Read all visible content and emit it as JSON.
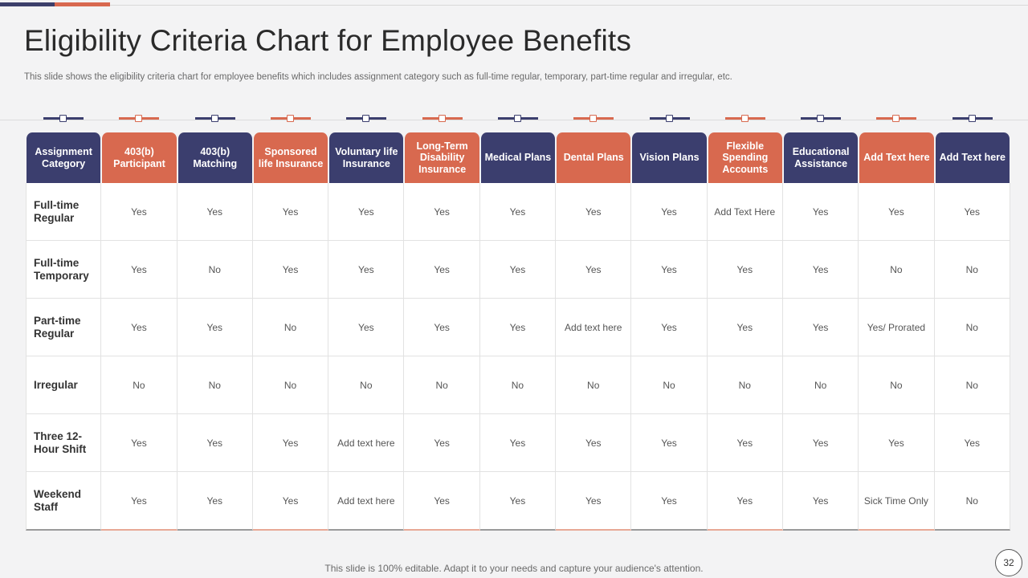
{
  "slide": {
    "title": "Eligibility Criteria Chart for Employee Benefits",
    "subtitle": "This slide shows the eligibility criteria chart for  employee benefits which includes assignment category such as full-time regular, temporary, part-time regular and irregular, etc.",
    "footer": "This slide is 100% editable. Adapt it to your needs and capture your audience's attention.",
    "page_number": "32"
  },
  "colors": {
    "navy": "#3b3e6e",
    "orange": "#d8694f"
  },
  "table": {
    "headers": [
      {
        "label": "Assignment Category",
        "color": "navy"
      },
      {
        "label": "403(b) Participant",
        "color": "orange"
      },
      {
        "label": "403(b) Matching",
        "color": "navy"
      },
      {
        "label": "Sponsored life Insurance",
        "color": "orange"
      },
      {
        "label": "Voluntary life Insurance",
        "color": "navy"
      },
      {
        "label": "Long-Term Disability Insurance",
        "color": "orange"
      },
      {
        "label": "Medical Plans",
        "color": "navy"
      },
      {
        "label": "Dental Plans",
        "color": "orange"
      },
      {
        "label": "Vision Plans",
        "color": "navy"
      },
      {
        "label": "Flexible Spending Accounts",
        "color": "orange"
      },
      {
        "label": "Educational Assistance",
        "color": "navy"
      },
      {
        "label": "Add Text here",
        "color": "orange"
      },
      {
        "label": "Add Text here",
        "color": "navy"
      }
    ],
    "rows": [
      [
        "Full-time Regular",
        "Yes",
        "Yes",
        "Yes",
        "Yes",
        "Yes",
        "Yes",
        "Yes",
        "Yes",
        "Add Text Here",
        "Yes",
        "Yes",
        "Yes"
      ],
      [
        "Full-time Temporary",
        "Yes",
        "No",
        "Yes",
        "Yes",
        "Yes",
        "Yes",
        "Yes",
        "Yes",
        "Yes",
        "Yes",
        "No",
        "No"
      ],
      [
        "Part-time Regular",
        "Yes",
        "Yes",
        "No",
        "Yes",
        "Yes",
        "Yes",
        "Add text here",
        "Yes",
        "Yes",
        "Yes",
        "Yes/ Prorated",
        "No"
      ],
      [
        "Irregular",
        "No",
        "No",
        "No",
        "No",
        "No",
        "No",
        "No",
        "No",
        "No",
        "No",
        "No",
        "No"
      ],
      [
        "Three 12-Hour  Shift",
        "Yes",
        "Yes",
        "Yes",
        "Add text here",
        "Yes",
        "Yes",
        "Yes",
        "Yes",
        "Yes",
        "Yes",
        "Yes",
        "Yes"
      ],
      [
        "Weekend Staff",
        "Yes",
        "Yes",
        "Yes",
        "Add text here",
        "Yes",
        "Yes",
        "Yes",
        "Yes",
        "Yes",
        "Yes",
        "Sick Time Only",
        "No"
      ]
    ]
  }
}
